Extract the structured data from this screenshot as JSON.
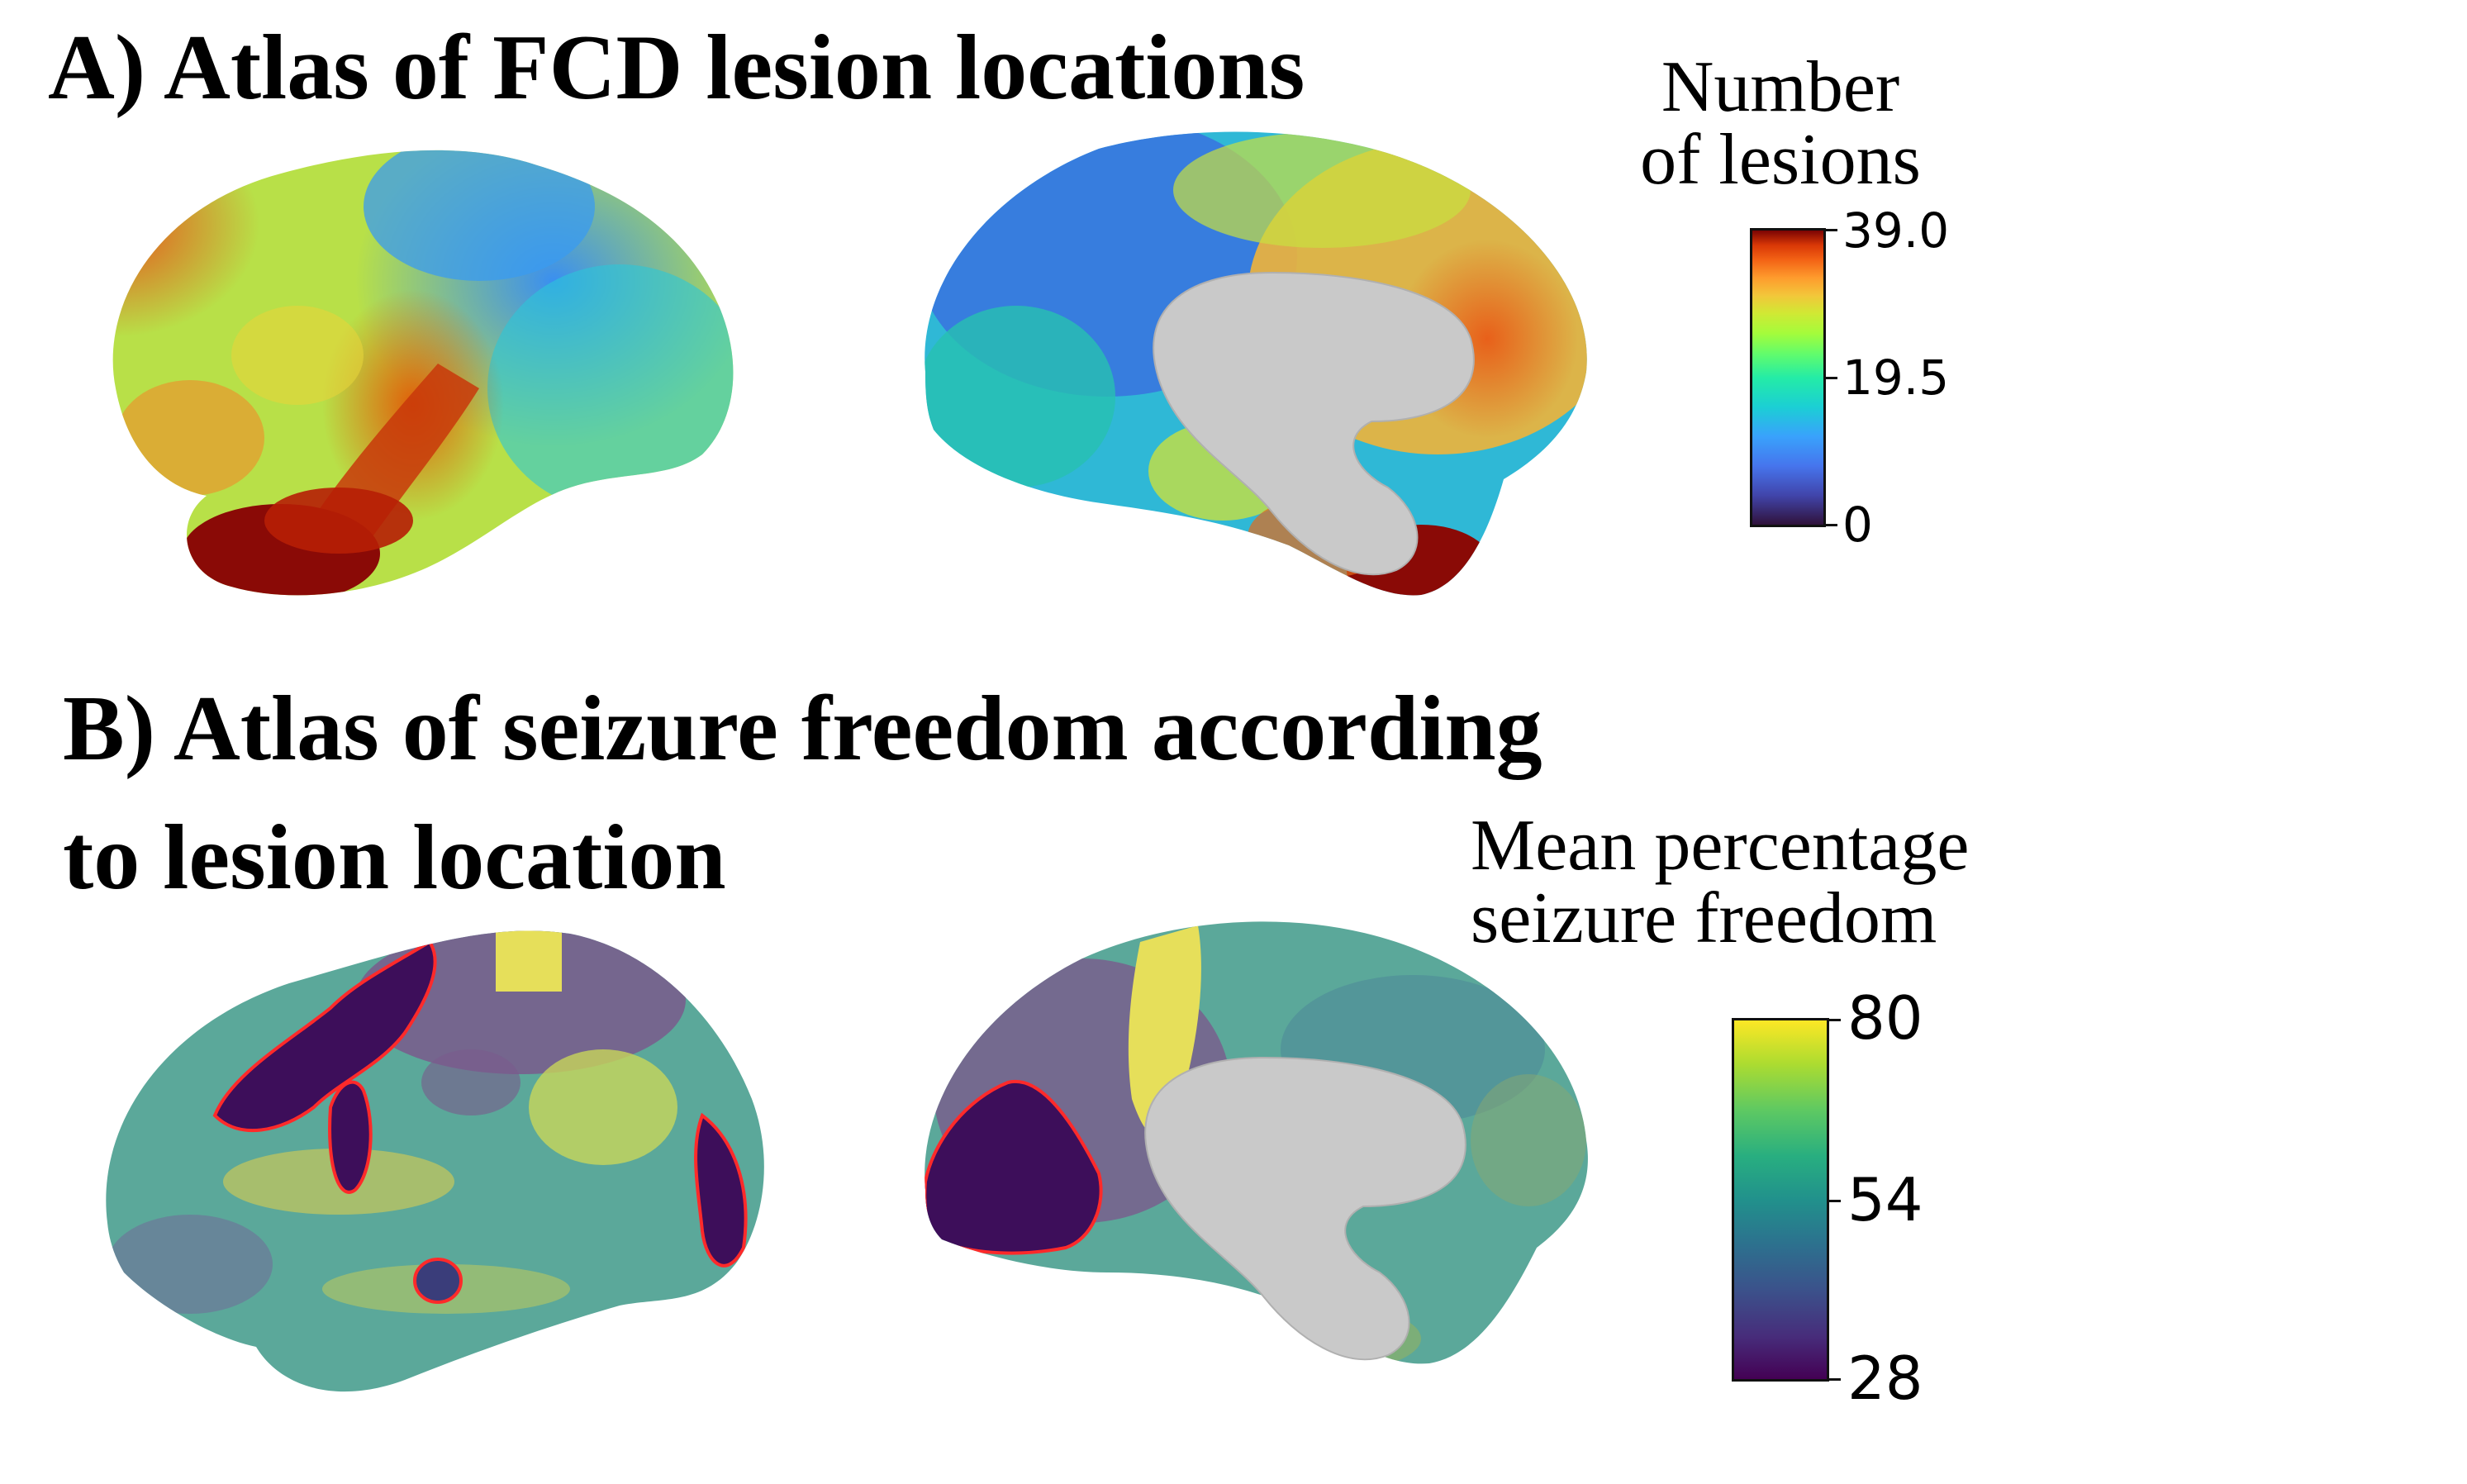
{
  "panel_a": {
    "title": "A) Atlas of FCD lesion locations",
    "legend": {
      "title_line1": "Number",
      "title_line2": "of lesions",
      "ticks": [
        "39.0",
        "19.5",
        "0"
      ],
      "colormap": "turbo",
      "min": 0,
      "max": 39.0
    }
  },
  "panel_b": {
    "title_line1": "B) Atlas of seizure freedom according",
    "title_line2": "to lesion location",
    "legend": {
      "title_line1": "Mean percentage",
      "title_line2": "seizure freedom",
      "ticks": [
        "80",
        "54",
        "28"
      ],
      "colormap": "viridis",
      "min": 28,
      "max": 80
    }
  },
  "colors": {
    "medial_wall": "#c9c9c9",
    "significant_outline": "#ff2a2a"
  }
}
